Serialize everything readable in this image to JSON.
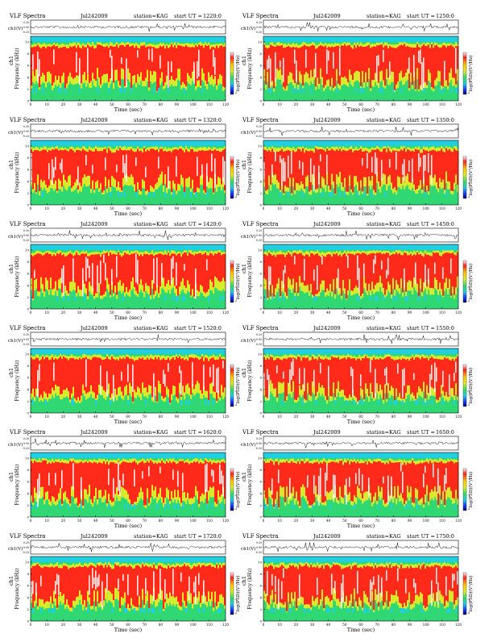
{
  "figure": {
    "title_prefix": "VLF Spectra",
    "date": "Jul242009",
    "station": "station=KAG",
    "start_label": "start UT =",
    "waveform_ylabel": "ch1(V)",
    "waveform_ticks": [
      "0.20",
      "0.00",
      "-0.20"
    ],
    "spectrogram_ylabel_top": "ch1",
    "spectrogram_ylabel": "Frequency (kHz)",
    "freq_ticks": [
      "0",
      "2",
      "4",
      "6",
      "8",
      "10"
    ],
    "xlabel": "Time (sec)",
    "colorbar_label": "log(PSD)(V²/Hz)",
    "colorbar_ticks": [
      "-3",
      "-4"
    ]
  },
  "colors": {
    "background_band": "#22cfe0",
    "spectrum_low": "#2fd873",
    "spectrum_mid": "#d8ea2c",
    "spectrum_high": "#ff2a1a",
    "spectrum_peak": "#ffffff"
  },
  "chart_data": {
    "type": "heatmap",
    "panels": [
      {
        "start_ut": "1220:0",
        "xlim": [
          0,
          120
        ],
        "xticks": [
          "0",
          "10",
          "20",
          "30",
          "40",
          "50",
          "60",
          "70",
          "80",
          "90",
          "100",
          "110",
          "120"
        ]
      },
      {
        "start_ut": "1250:0",
        "xlim": [
          0,
          120
        ],
        "xticks": [
          "0",
          "10",
          "20",
          "30",
          "40",
          "50",
          "60",
          "70",
          "80",
          "90",
          "100",
          "110",
          "120"
        ]
      },
      {
        "start_ut": "1320:0",
        "xlim": [
          0,
          120
        ],
        "xticks": [
          "0",
          "10",
          "20",
          "30",
          "40",
          "50",
          "60",
          "70",
          "80",
          "90",
          "100",
          "110",
          "120"
        ]
      },
      {
        "start_ut": "1350:0",
        "xlim": [
          0,
          120
        ],
        "xticks": [
          "0",
          "10",
          "20",
          "30",
          "40",
          "50",
          "60",
          "70",
          "80",
          "90",
          "100",
          "110",
          "120"
        ]
      },
      {
        "start_ut": "1420:0",
        "xlim": [
          0,
          120
        ],
        "xticks": [
          "0",
          "10",
          "20",
          "30",
          "40",
          "50",
          "60",
          "70",
          "80",
          "90",
          "100",
          "110",
          "120"
        ]
      },
      {
        "start_ut": "1450:0",
        "xlim": [
          0,
          120
        ],
        "xticks": [
          "0",
          "10",
          "20",
          "30",
          "40",
          "50",
          "60",
          "70",
          "80",
          "90",
          "100",
          "110",
          "120"
        ]
      },
      {
        "start_ut": "1520:0",
        "xlim": [
          0,
          120
        ],
        "xticks": [
          "0",
          "10",
          "20",
          "30",
          "40",
          "50",
          "60",
          "70",
          "80",
          "90",
          "100",
          "110",
          "120"
        ]
      },
      {
        "start_ut": "1550:0",
        "xlim": [
          0,
          120
        ],
        "xticks": [
          "0",
          "10",
          "20",
          "30",
          "40",
          "50",
          "60",
          "70",
          "80",
          "90",
          "100",
          "110",
          "120"
        ]
      },
      {
        "start_ut": "1620:0",
        "xlim": [
          0,
          120
        ],
        "xticks": [
          "0",
          "10",
          "20",
          "30",
          "40",
          "50",
          "60",
          "70",
          "80",
          "90",
          "100",
          "110",
          "120"
        ]
      },
      {
        "start_ut": "1650:0",
        "xlim": [
          0,
          120
        ],
        "xticks": [
          "0",
          "10",
          "20",
          "30",
          "40",
          "50",
          "60",
          "70",
          "80",
          "90",
          "100",
          "110",
          "120"
        ]
      },
      {
        "start_ut": "1720:0",
        "xlim": [
          0,
          120
        ],
        "xticks": [
          "0",
          "10",
          "20",
          "30",
          "40",
          "50",
          "60",
          "70",
          "80",
          "90",
          "100",
          "110",
          "120"
        ]
      },
      {
        "start_ut": "1750:0",
        "xlim": [
          0,
          120
        ],
        "xticks": [
          "0",
          "10",
          "20",
          "30",
          "40",
          "50",
          "60",
          "70",
          "80",
          "90",
          "100",
          "110",
          "120"
        ]
      }
    ],
    "ylim_frequency_khz": [
      0,
      10
    ],
    "ylim_waveform_v": [
      -0.2,
      0.2
    ]
  }
}
